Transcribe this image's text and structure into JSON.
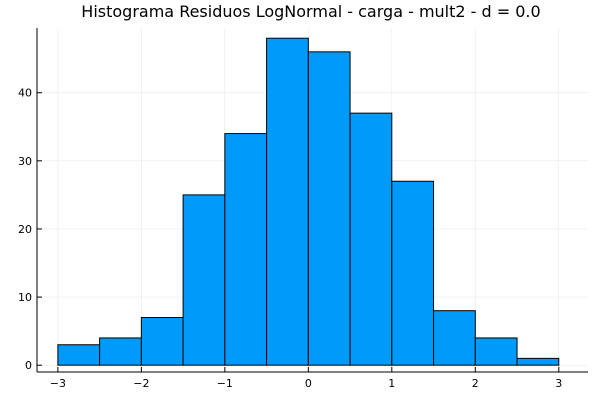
{
  "chart_data": {
    "type": "bar",
    "title": "Histograma Residuos LogNormal - carga - mult2 - d = 0.0",
    "xlabel": "",
    "ylabel": "",
    "bin_edges": [
      -3,
      -2.5,
      -2,
      -1.5,
      -1,
      -0.5,
      0,
      0.5,
      1,
      1.5,
      2,
      2.5,
      3
    ],
    "values": [
      3,
      4,
      7,
      25,
      34,
      48,
      46,
      37,
      27,
      8,
      4,
      1
    ],
    "xlim": [
      -3.25,
      3.35
    ],
    "ylim": [
      -1,
      49.5
    ],
    "xticks": [
      -3,
      -2,
      -1,
      0,
      1,
      2,
      3
    ],
    "xtick_labels": [
      "−3",
      "−2",
      "−1",
      "0",
      "1",
      "2",
      "3"
    ],
    "yticks": [
      0,
      10,
      20,
      30,
      40
    ],
    "ytick_labels": [
      "0",
      "10",
      "20",
      "30",
      "40"
    ],
    "grid": true,
    "legend": false,
    "colors": {
      "bar_fill": "#009AFA",
      "bar_edge": "#000000"
    }
  }
}
